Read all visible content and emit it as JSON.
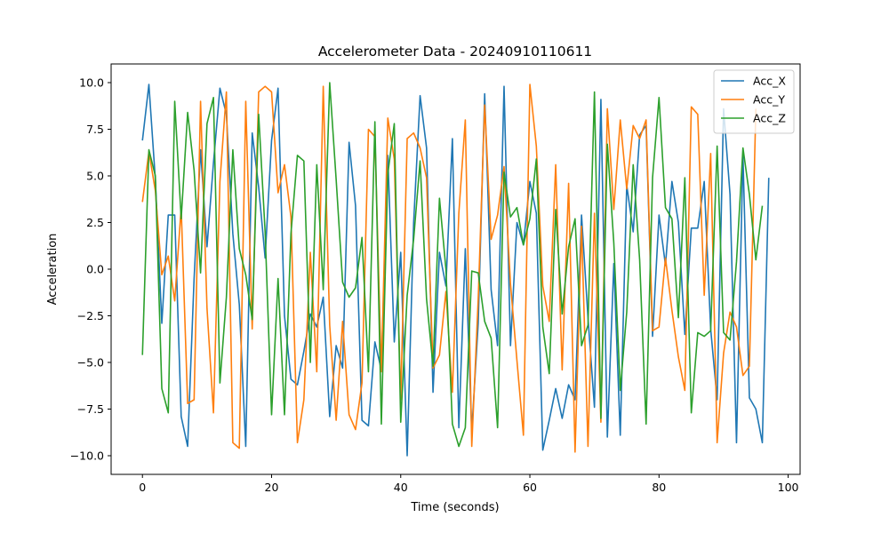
{
  "chart_data": {
    "type": "line",
    "title": "Accelerometer Data - 20240910110611",
    "xlabel": "Time (seconds)",
    "ylabel": "Acceleration",
    "xlim": [
      -4.85,
      101.85
    ],
    "ylim": [
      -11.0,
      11.0
    ],
    "xticks": [
      0,
      20,
      40,
      60,
      80,
      100
    ],
    "xtick_labels": [
      "0",
      "20",
      "40",
      "60",
      "80",
      "100"
    ],
    "yticks": [
      -10.0,
      -7.5,
      -5.0,
      -2.5,
      0.0,
      2.5,
      5.0,
      7.5,
      10.0
    ],
    "ytick_labels": [
      "−10.0",
      "−7.5",
      "−5.0",
      "−2.5",
      "0.0",
      "2.5",
      "5.0",
      "7.5",
      "10.0"
    ],
    "grid": false,
    "legend_position": "top-right",
    "x_start": 0,
    "x_step": 1,
    "series": [
      {
        "name": "Acc_X",
        "color": "#1f77b4",
        "values": [
          6.9,
          9.9,
          4.8,
          -2.9,
          2.9,
          2.9,
          -7.9,
          -9.5,
          -0.5,
          6.4,
          1.2,
          5.7,
          9.7,
          8.3,
          1.9,
          -1.9,
          -9.5,
          7.3,
          4.4,
          0.6,
          6.9,
          9.7,
          -2.5,
          -5.9,
          -6.2,
          -4.4,
          -2.4,
          -3.1,
          -1.5,
          -7.9,
          -4.1,
          -5.3,
          6.8,
          3.4,
          -8.1,
          -8.4,
          -3.9,
          -5.4,
          6.1,
          -3.9,
          0.9,
          -10.0,
          2.5,
          9.3,
          6.5,
          -6.6,
          0.9,
          -0.9,
          7.0,
          -8.5,
          1.1,
          -8.7,
          -2.9,
          9.4,
          -1.1,
          -4.1,
          9.8,
          -4.1,
          2.5,
          1.3,
          4.7,
          3.0,
          -9.7,
          -8.1,
          -6.4,
          -8.0,
          -6.2,
          -7.0,
          2.9,
          -2.6,
          -7.4,
          9.1,
          -9.0,
          0.3,
          -8.9,
          4.5,
          2.0,
          7.2,
          7.7,
          -3.6,
          2.9,
          0.2,
          4.7,
          2.5,
          -3.5,
          2.2,
          2.2,
          4.7,
          -3.2,
          -7.0,
          8.6,
          4.0,
          -9.3,
          6.1,
          -6.9,
          -7.5,
          -9.3,
          4.9
        ]
      },
      {
        "name": "Acc_Y",
        "color": "#ff7f0e",
        "values": [
          3.6,
          6.3,
          4.2,
          -0.3,
          0.7,
          -1.7,
          3.3,
          -7.2,
          -7.0,
          9.0,
          -2.1,
          -7.7,
          4.7,
          9.5,
          -9.3,
          -9.6,
          9.0,
          -3.2,
          9.5,
          9.8,
          9.5,
          4.1,
          5.6,
          2.8,
          -9.3,
          -7.0,
          0.9,
          -5.5,
          9.8,
          -3.0,
          -8.1,
          -2.8,
          -7.8,
          -8.6,
          -6.1,
          7.5,
          7.1,
          -5.5,
          8.1,
          5.9,
          -7.0,
          7.0,
          7.3,
          6.5,
          4.9,
          -5.3,
          -4.6,
          -1.2,
          -6.6,
          3.0,
          8.0,
          -9.5,
          -1.6,
          8.8,
          1.6,
          2.9,
          5.5,
          -0.8,
          -4.9,
          -8.9,
          9.9,
          6.6,
          -0.9,
          -2.8,
          5.6,
          -5.4,
          4.6,
          -9.8,
          2.3,
          -9.5,
          3.0,
          -8.2,
          8.6,
          3.2,
          8.0,
          4.3,
          7.7,
          7.0,
          8.0,
          -3.3,
          -3.1,
          0.6,
          -2.2,
          -4.7,
          -6.5,
          8.7,
          8.3,
          -1.4,
          6.2,
          -9.3,
          -4.5,
          -2.3,
          -3.1,
          -5.7,
          -5.2,
          8.6
        ]
      },
      {
        "name": "Acc_Z",
        "color": "#2ca02c",
        "values": [
          -4.6,
          6.4,
          5.0,
          -6.4,
          -7.7,
          9.0,
          2.7,
          8.4,
          5.3,
          -0.2,
          7.8,
          9.2,
          -6.1,
          -1.5,
          6.4,
          1.1,
          -0.3,
          -2.7,
          8.3,
          2.0,
          -7.8,
          -0.5,
          -7.8,
          1.9,
          6.1,
          5.8,
          -5.0,
          5.6,
          -1.1,
          10.0,
          4.8,
          -0.7,
          -1.5,
          -1.0,
          1.7,
          -5.5,
          7.9,
          -8.3,
          5.1,
          7.8,
          -8.2,
          -1.4,
          1.6,
          5.8,
          -1.6,
          -5.2,
          3.8,
          0.0,
          -8.3,
          -9.5,
          -8.5,
          -0.1,
          -0.2,
          -2.8,
          -3.7,
          -8.5,
          5.2,
          2.8,
          3.3,
          1.3,
          2.7,
          5.9,
          -3.1,
          -5.6,
          3.2,
          -2.4,
          1.2,
          2.7,
          -4.1,
          -3.0,
          9.5,
          -8.0,
          6.7,
          1.4,
          -6.5,
          -2.3,
          5.6,
          0.5,
          -8.3,
          4.9,
          9.2,
          3.3,
          2.7,
          -2.6,
          4.9,
          -7.7,
          -3.4,
          -3.6,
          -3.3,
          6.6,
          -3.4,
          -3.8,
          0.4,
          6.5,
          4.0,
          0.5,
          3.4
        ]
      }
    ]
  }
}
